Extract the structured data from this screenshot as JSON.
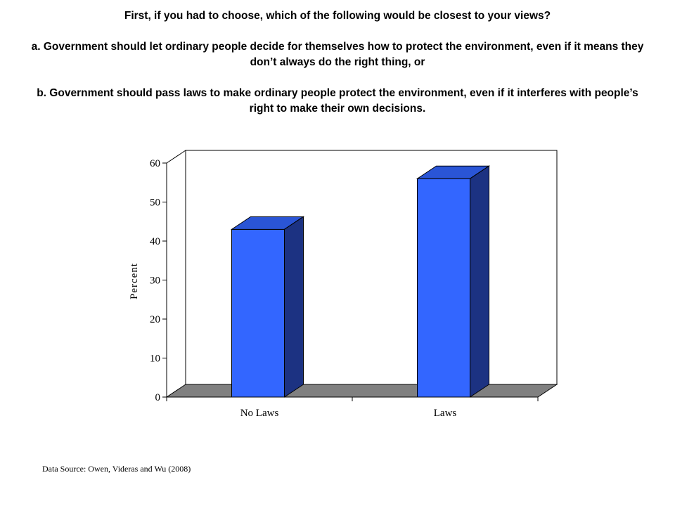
{
  "question": {
    "intro": "First, if you had to choose, which of the following would be closest to your views?",
    "option_a": "a. Government should let ordinary people decide for themselves how to protect the environment, even if it means they don’t always do the right thing, or",
    "option_b": "b. Government should pass laws to make ordinary people protect the environment, even if it interferes with people’s right to make their own decisions."
  },
  "chart_data": {
    "type": "bar",
    "style": "3d",
    "categories": [
      "No Laws",
      "Laws"
    ],
    "values": [
      43,
      56
    ],
    "title": "",
    "xlabel": "",
    "ylabel": "Percent",
    "ylim": [
      0,
      60
    ],
    "yticks": [
      0,
      10,
      20,
      30,
      40,
      50,
      60
    ],
    "grid": false,
    "legend": "none",
    "colors": {
      "bar_front": "#3366ff",
      "bar_top": "#2a55d6",
      "bar_side": "#1c3282",
      "floor": "#808080",
      "outline": "#000000"
    }
  },
  "source": "Data Source: Owen, Videras and Wu (2008)"
}
